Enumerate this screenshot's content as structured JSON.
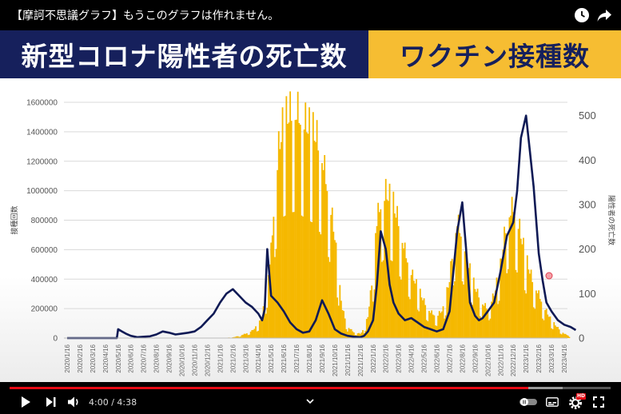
{
  "video_title": "【摩訶不思議グラフ】もうこのグラフは作れません。",
  "icons": {
    "watch_later": "clock-icon",
    "share": "share-arrow-icon"
  },
  "banner": {
    "left_text": "新型コロナ陽性者の死亡数",
    "right_text": "ワクチン接種数",
    "left_bg": "#16205c",
    "right_bg": "#f6bd32"
  },
  "chart_data": {
    "type": "bar",
    "x_ticks": [
      "2020/1/16",
      "2020/2/16",
      "2020/3/16",
      "2020/4/16",
      "2020/5/16",
      "2020/6/16",
      "2020/7/16",
      "2020/8/16",
      "2020/9/16",
      "2020/10/16",
      "2020/11/16",
      "2020/12/16",
      "2021/1/16",
      "2021/2/16",
      "2021/3/16",
      "2021/4/16",
      "2021/5/16",
      "2021/6/16",
      "2021/7/16",
      "2021/8/16",
      "2021/9/16",
      "2021/10/16",
      "2021/11/16",
      "2021/12/16",
      "2022/1/16",
      "2022/2/16",
      "2022/3/16",
      "2022/4/16",
      "2022/5/16",
      "2022/6/16",
      "2022/7/16",
      "2022/8/16",
      "2022/9/16",
      "2022/10/16",
      "2022/11/16",
      "2022/12/16",
      "2023/1/16",
      "2023/2/16",
      "2023/3/16",
      "2023/4/16"
    ],
    "ylabel_left": "接種回数",
    "ylabel_right": "陽性者の死亡数",
    "y_left_ticks": [
      "0",
      "200000",
      "400000",
      "600000",
      "800000",
      "1000000",
      "1200000",
      "1400000",
      "1600000"
    ],
    "y_right_ticks": [
      "0",
      "100",
      "200",
      "300",
      "400",
      "500"
    ],
    "ylim_left": [
      0,
      1600000
    ],
    "ylim_right": [
      0,
      530
    ],
    "series": [
      {
        "name": "接種回数",
        "axis": "left",
        "style": "bar",
        "color": "#f5b800",
        "month_idx": [
          0,
          1,
          2,
          3,
          4,
          5,
          6,
          7,
          8,
          9,
          10,
          11,
          12,
          13,
          13.5,
          14,
          14.5,
          15,
          15.3,
          15.6,
          16,
          16.3,
          16.6,
          17,
          17.5,
          18,
          18.5,
          19,
          19.5,
          20,
          20.5,
          21,
          21.3,
          21.6,
          22,
          22.5,
          23,
          23.3,
          23.6,
          24,
          24.2,
          24.5,
          25,
          25.5,
          26,
          26.5,
          27,
          27.5,
          28,
          28.5,
          29,
          29.5,
          30,
          30.3,
          30.6,
          31,
          31.5,
          32,
          32.5,
          33,
          33.5,
          34,
          34.3,
          34.6,
          35,
          35.5,
          36,
          36.5,
          37,
          37.5,
          38,
          38.5,
          39,
          39.5
        ],
        "values": [
          0,
          0,
          0,
          0,
          0,
          0,
          0,
          0,
          0,
          0,
          0,
          0,
          0,
          5000,
          15000,
          30000,
          50000,
          90000,
          150000,
          300000,
          600000,
          1000000,
          1300000,
          1500000,
          1550000,
          1560000,
          1500000,
          1450000,
          1400000,
          1250000,
          1000000,
          700000,
          400000,
          200000,
          80000,
          40000,
          30000,
          60000,
          150000,
          450000,
          750000,
          900000,
          1000000,
          950000,
          800000,
          600000,
          450000,
          350000,
          250000,
          180000,
          150000,
          200000,
          400000,
          650000,
          800000,
          700000,
          500000,
          350000,
          250000,
          200000,
          300000,
          500000,
          700000,
          850000,
          900000,
          750000,
          550000,
          400000,
          300000,
          200000,
          120000,
          70000,
          30000,
          10000
        ]
      },
      {
        "name": "陽性者の死亡数",
        "axis": "right",
        "style": "line",
        "color": "#0f1a55",
        "month_idx": [
          0,
          1,
          2,
          3,
          3.9,
          4.0,
          4.3,
          4.6,
          5,
          5.5,
          6,
          6.5,
          7,
          7.5,
          8,
          8.5,
          9,
          9.5,
          10,
          10.5,
          11,
          11.5,
          12,
          12.5,
          13,
          13.5,
          14,
          14.5,
          15,
          15.3,
          15.5,
          15.7,
          16,
          16.5,
          17,
          17.5,
          18,
          18.5,
          19,
          19.5,
          20,
          20.5,
          21,
          21.5,
          22,
          22.5,
          23,
          23.3,
          23.6,
          24,
          24.3,
          24.6,
          25,
          25.3,
          25.6,
          26,
          26.5,
          27,
          27.5,
          28,
          28.5,
          29,
          29.5,
          30,
          30.3,
          30.6,
          31,
          31.3,
          31.6,
          32,
          32.3,
          32.6,
          33,
          33.5,
          34,
          34.5,
          35,
          35.3,
          35.6,
          36,
          36.3,
          36.6,
          37,
          37.3,
          37.6,
          38,
          38.5,
          39,
          39.5,
          39.9
        ],
        "values": [
          0,
          0,
          0,
          0,
          0,
          20,
          15,
          10,
          5,
          2,
          3,
          4,
          8,
          15,
          12,
          8,
          10,
          12,
          15,
          25,
          40,
          55,
          80,
          100,
          110,
          95,
          80,
          70,
          55,
          40,
          65,
          200,
          95,
          80,
          60,
          35,
          20,
          12,
          15,
          40,
          85,
          55,
          20,
          10,
          5,
          3,
          2,
          5,
          15,
          40,
          120,
          240,
          200,
          120,
          80,
          55,
          40,
          45,
          35,
          25,
          20,
          15,
          20,
          60,
          150,
          240,
          305,
          200,
          80,
          50,
          40,
          45,
          60,
          80,
          150,
          230,
          260,
          330,
          450,
          500,
          420,
          340,
          190,
          130,
          80,
          60,
          40,
          30,
          25,
          18
        ]
      }
    ],
    "grid": true
  },
  "player": {
    "time_text": "4:00 / 4:38",
    "progress": 0.8633,
    "buffered": 0.92,
    "icons": [
      "play-icon",
      "next-icon",
      "volume-icon",
      "chevron-down-icon",
      "autoplay-toggle-icon",
      "subtitles-icon",
      "settings-hd-icon",
      "fullscreen-icon"
    ],
    "hd_badge": "HD"
  }
}
